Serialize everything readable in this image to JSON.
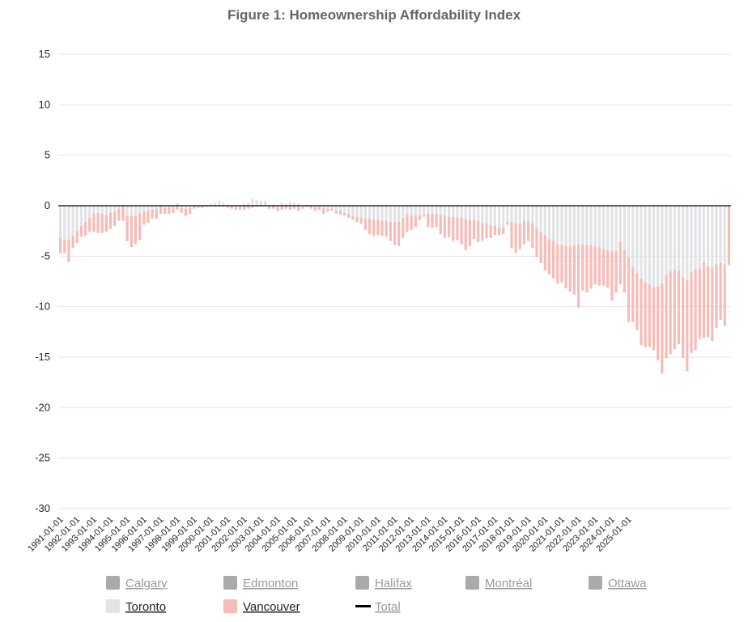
{
  "chart_data": {
    "type": "bar",
    "stacked": true,
    "title": "Figure 1: Homeownership Affordability Index",
    "xlabel": "",
    "ylabel": "",
    "ylim": [
      -30,
      15
    ],
    "yticks": [
      15,
      10,
      5,
      0,
      -5,
      -10,
      -15,
      -20,
      -25,
      -30
    ],
    "grid": true,
    "legend_position": "bottom",
    "colors": {
      "Calgary": "#aaaaaa",
      "Edmonton": "#aaaaaa",
      "Halifax": "#aaaaaa",
      "Montréal": "#aaaaaa",
      "Ottawa": "#aaaaaa",
      "Toronto": "#e1e3e6",
      "Vancouver": "#f5bcb8",
      "Total": "#000000",
      "legend_inactive_text": "#9a9a9a",
      "legend_active_text": "#222222",
      "grid": "#e6e6e6",
      "zero_line": "#000000"
    },
    "legend": [
      {
        "name": "Calgary",
        "active": false,
        "marker": "square"
      },
      {
        "name": "Edmonton",
        "active": false,
        "marker": "square"
      },
      {
        "name": "Halifax",
        "active": false,
        "marker": "square"
      },
      {
        "name": "Montréal",
        "active": false,
        "marker": "square"
      },
      {
        "name": "Ottawa",
        "active": false,
        "marker": "square"
      },
      {
        "name": "Toronto",
        "active": true,
        "marker": "square"
      },
      {
        "name": "Vancouver",
        "active": true,
        "marker": "square"
      },
      {
        "name": "Total",
        "active": false,
        "marker": "line"
      }
    ],
    "x_tick_labels": [
      "1991-01-01",
      "1992-01-01",
      "1993-01-01",
      "1994-01-01",
      "1995-01-01",
      "1996-01-01",
      "1997-01-01",
      "1998-01-01",
      "1999-01-01",
      "2000-01-01",
      "2001-01-01",
      "2002-01-01",
      "2003-01-01",
      "2004-01-01",
      "2005-01-01",
      "2006-01-01",
      "2007-01-01",
      "2008-01-01",
      "2009-01-01",
      "2010-01-01",
      "2011-01-01",
      "2012-01-01",
      "2013-01-01",
      "2014-01-01",
      "2015-01-01",
      "2016-01-01",
      "2017-01-01",
      "2018-01-01",
      "2019-01-01",
      "2020-01-01",
      "2021-01-01",
      "2022-01-01",
      "2023-01-01",
      "2024-01-01",
      "2025-01-01"
    ],
    "periods_per_year": 4,
    "first_period": "1991-01-01",
    "series": [
      {
        "name": "Toronto",
        "values": [
          -3.2,
          -3.4,
          -3.4,
          -3.0,
          -2.5,
          -2.0,
          -1.6,
          -1.2,
          -0.8,
          -0.7,
          -0.8,
          -0.9,
          -0.7,
          -0.6,
          -0.3,
          0.1,
          -1.0,
          -1.0,
          -1.0,
          -0.8,
          -0.6,
          -0.5,
          -0.4,
          -0.3,
          0.1,
          -0.2,
          -0.1,
          -0.1,
          0.3,
          -0.2,
          -0.3,
          -0.2,
          0.0,
          0.0,
          0.0,
          0.0,
          0.2,
          0.3,
          0.5,
          0.3,
          0.1,
          0.0,
          -0.1,
          0.0,
          0.2,
          0.3,
          0.7,
          0.6,
          0.5,
          0.5,
          0.1,
          0.1,
          -0.1,
          0.3,
          0.2,
          0.4,
          0.3,
          0.2,
          -0.1,
          0.1,
          0.0,
          -0.1,
          -0.1,
          -0.2,
          -0.3,
          -0.3,
          -0.5,
          -0.5,
          -0.7,
          -0.8,
          -1.0,
          -1.1,
          -1.2,
          -1.3,
          -1.3,
          -1.4,
          -1.4,
          -1.5,
          -1.5,
          -1.6,
          -1.6,
          -1.6,
          -1.2,
          -0.9,
          -1.0,
          -1.0,
          -1.0,
          -0.9,
          -0.8,
          -0.8,
          -0.8,
          -0.9,
          -1.0,
          -1.1,
          -1.1,
          -1.2,
          -1.2,
          -1.3,
          -1.4,
          -1.4,
          -1.5,
          -1.7,
          -1.8,
          -1.9,
          -2.0,
          -2.1,
          -2.2,
          -1.6,
          -1.6,
          -1.7,
          -1.8,
          -1.5,
          -1.5,
          -1.7,
          -2.2,
          -2.6,
          -2.9,
          -3.3,
          -3.5,
          -3.8,
          -3.9,
          -4.0,
          -4.0,
          -3.9,
          -3.9,
          -3.8,
          -3.9,
          -3.9,
          -4.0,
          -4.1,
          -4.3,
          -4.4,
          -4.5,
          -4.5,
          -3.6,
          -4.4,
          -5.1,
          -6.1,
          -6.7,
          -7.2,
          -7.6,
          -7.8,
          -8.1,
          -8.0,
          -7.7,
          -6.9,
          -6.5,
          -6.3,
          -6.4,
          -7.1,
          -7.4,
          -6.6,
          -6.3,
          -6.2,
          -5.6,
          -6.0,
          -6.1,
          -5.8,
          -5.6,
          -5.8
        ],
        "unit": "quarterly index points"
      },
      {
        "name": "Vancouver",
        "values": [
          -1.5,
          -1.3,
          -2.2,
          -1.2,
          -1.2,
          -1.1,
          -1.4,
          -1.4,
          -1.8,
          -2.0,
          -1.9,
          -1.7,
          -1.6,
          -1.4,
          -1.2,
          -1.5,
          -2.5,
          -3.1,
          -2.8,
          -2.6,
          -1.3,
          -1.2,
          -0.9,
          -1.0,
          -0.8,
          -0.6,
          -0.7,
          -0.6,
          -0.4,
          -0.5,
          -0.7,
          -0.6,
          -0.3,
          -0.2,
          -0.2,
          -0.1,
          -0.1,
          -0.1,
          -0.1,
          -0.1,
          -0.2,
          -0.3,
          -0.3,
          -0.4,
          -0.4,
          -0.3,
          -0.2,
          -0.1,
          -0.1,
          -0.1,
          -0.3,
          -0.3,
          -0.4,
          -0.4,
          -0.3,
          -0.4,
          -0.3,
          -0.5,
          -0.2,
          -0.1,
          -0.3,
          -0.4,
          -0.3,
          -0.6,
          -0.3,
          -0.2,
          -0.3,
          -0.4,
          -0.3,
          -0.4,
          -0.4,
          -0.5,
          -0.6,
          -1.1,
          -1.5,
          -1.6,
          -1.5,
          -1.5,
          -1.6,
          -1.9,
          -2.3,
          -2.4,
          -2.0,
          -1.7,
          -1.4,
          -1.1,
          -0.4,
          -0.2,
          -1.3,
          -1.4,
          -1.3,
          -1.9,
          -2.2,
          -2.0,
          -2.4,
          -2.2,
          -2.6,
          -3.1,
          -2.6,
          -1.9,
          -2.1,
          -1.8,
          -1.4,
          -1.3,
          -0.9,
          -0.8,
          -0.6,
          -0.3,
          -2.6,
          -3.0,
          -2.5,
          -2.3,
          -2.0,
          -2.5,
          -2.9,
          -3.1,
          -3.5,
          -3.5,
          -3.7,
          -3.9,
          -3.7,
          -4.2,
          -4.5,
          -4.9,
          -6.2,
          -4.6,
          -4.7,
          -4.3,
          -3.8,
          -3.8,
          -3.6,
          -3.7,
          -4.9,
          -4.1,
          -4.2,
          -4.2,
          -6.4,
          -5.4,
          -5.6,
          -6.6,
          -6.4,
          -6.2,
          -6.2,
          -7.3,
          -8.9,
          -8.2,
          -8.2,
          -7.9,
          -7.3,
          -8.0,
          -9.0,
          -8.0,
          -8.0,
          -7.0,
          -7.5,
          -7.0,
          -7.3,
          -6.3,
          -5.7,
          -6.1,
          -5.9
        ],
        "unit": "quarterly index points"
      }
    ]
  }
}
